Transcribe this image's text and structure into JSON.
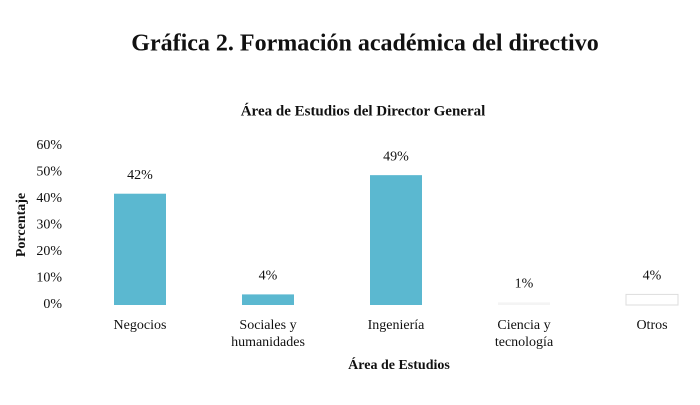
{
  "chart_data": {
    "type": "bar",
    "heading": "Gráfica 2. Formación académica del directivo",
    "title": "Área de Estudios del Director General",
    "x_label": "Área de Estudios",
    "y_label": "Porcentaje",
    "categories": [
      "Negocios",
      "Sociales y humanidades",
      "Ingeniería",
      "Ciencia y tecnología",
      "Otros"
    ],
    "values": [
      42,
      4,
      49,
      1,
      4
    ],
    "value_labels": [
      "42%",
      "4%",
      "49%",
      "1%",
      "4%"
    ],
    "colors": [
      "#5bb8d0",
      "#5bb8d0",
      "#5bb8d0",
      "#f4f4f4",
      "#ffffff"
    ],
    "ylim": [
      0,
      60
    ],
    "yticks": [
      {
        "value": 0,
        "label": "0%"
      },
      {
        "value": 10,
        "label": "10%"
      },
      {
        "value": 20,
        "label": "20%"
      },
      {
        "value": 30,
        "label": "30%"
      },
      {
        "value": 40,
        "label": "40%"
      },
      {
        "value": 50,
        "label": "50%"
      },
      {
        "value": 60,
        "label": "60%"
      }
    ],
    "grid": false
  }
}
